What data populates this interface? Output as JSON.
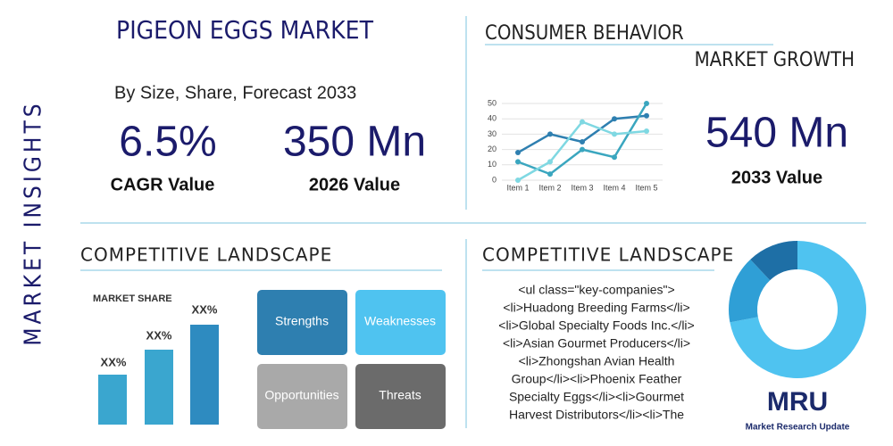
{
  "side_label": "MARKET INSIGHTS",
  "header": {
    "title": "PIGEON EGGS MARKET",
    "subtitle": "By Size, Share, Forecast 2033"
  },
  "stats": [
    {
      "value": "6.5%",
      "label": "CAGR Value"
    },
    {
      "value": "350 Mn",
      "label": "2026 Value"
    },
    {
      "value": "540 Mn",
      "label": "2033 Value"
    }
  ],
  "consumer": {
    "title": "CONSUMER BEHAVIOR",
    "subtitle": "MARKET GROWTH",
    "chart": {
      "type": "line",
      "categories": [
        "Item 1",
        "Item 2",
        "Item 3",
        "Item 4",
        "Item 5"
      ],
      "series": [
        {
          "color": "#2e7fb0",
          "values": [
            18,
            30,
            25,
            40,
            42
          ]
        },
        {
          "color": "#3aa6bf",
          "values": [
            12,
            4,
            20,
            15,
            50
          ]
        },
        {
          "color": "#7fd8e2",
          "values": [
            0,
            12,
            38,
            30,
            32
          ]
        }
      ],
      "ylim": [
        0,
        50
      ],
      "yticks": [
        0,
        10,
        20,
        30,
        40,
        50
      ],
      "grid": true
    }
  },
  "competitive_left": {
    "title": "COMPETITIVE LANDSCAPE",
    "share_title": "MARKET SHARE",
    "share_labels": [
      "XX%",
      "XX%",
      "XX%"
    ],
    "swot": [
      "Strengths",
      "Weaknesses",
      "Opportunities",
      "Threats"
    ]
  },
  "competitive_right": {
    "title": "COMPETITIVE LANDSCAPE",
    "lines": [
      "<ul class=\"key-companies\">",
      "<li>Huadong Breeding Farms</li>",
      "<li>Global Specialty Foods Inc.</li>",
      "<li>Asian Gourmet Producers</li>",
      "<li>Zhongshan Avian Health",
      "Group</li><li>Phoenix Feather",
      "Specialty Eggs</li><li>Gourmet",
      "Harvest Distributors</li><li>The"
    ],
    "donut": {
      "type": "pie",
      "values": [
        72,
        16,
        12
      ],
      "colors": [
        "#4fc3f0",
        "#2f9fd6",
        "#1e6fa6"
      ]
    }
  },
  "logo": {
    "mark": "MRU",
    "text": "Market Research Update"
  }
}
